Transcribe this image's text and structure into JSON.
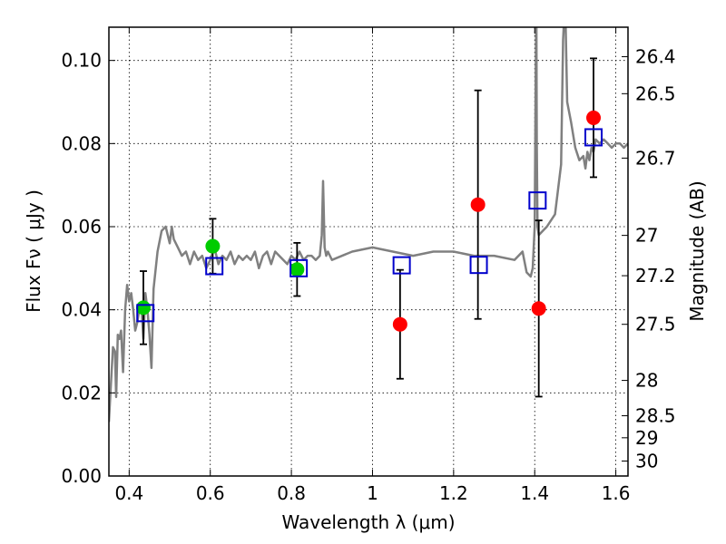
{
  "chart_data": {
    "type": "scatter",
    "title": "",
    "xlabel": "Wavelength  λ (μm)",
    "ylabel": "Flux  Fν  ( μJy )",
    "y2label": "Magnitude (AB)",
    "xlim": [
      0.35,
      1.63
    ],
    "ylim": [
      0.0,
      0.108
    ],
    "grid": true,
    "x_ticks": [
      0.4,
      0.6,
      0.8,
      1.0,
      1.2,
      1.4,
      1.6
    ],
    "x_tick_labels": [
      "0.4",
      "0.6",
      "0.8",
      "1",
      "1.2",
      "1.4",
      "1.6"
    ],
    "y_ticks": [
      0.0,
      0.02,
      0.04,
      0.06,
      0.08,
      0.1
    ],
    "y_tick_labels": [
      "0.00",
      "0.02",
      "0.04",
      "0.06",
      "0.08",
      "0.10"
    ],
    "y2_tick_labels": [
      "26.4",
      "26.5",
      "26.7",
      "27",
      "27.2",
      "27.5",
      "28",
      "28.5",
      "29",
      "30"
    ],
    "y2_tick_flux": [
      0.1009,
      0.092,
      0.0765,
      0.0579,
      0.0482,
      0.0365,
      0.023,
      0.0145,
      0.0092,
      0.0036
    ],
    "colors": {
      "model": "#808080",
      "green_points": "#00cc00",
      "red_points": "#ff0000",
      "open_squares": "#0000cc",
      "error_bars": "#000000"
    },
    "series": [
      {
        "type": "line",
        "x": [
          0.35,
          0.355,
          0.36,
          0.365,
          0.368,
          0.372,
          0.376,
          0.38,
          0.385,
          0.39,
          0.395,
          0.4,
          0.405,
          0.41,
          0.415,
          0.42,
          0.425,
          0.43,
          0.435,
          0.44,
          0.445,
          0.45,
          0.455,
          0.46,
          0.47,
          0.48,
          0.49,
          0.5,
          0.505,
          0.51,
          0.52,
          0.53,
          0.54,
          0.55,
          0.56,
          0.57,
          0.58,
          0.59,
          0.6,
          0.61,
          0.62,
          0.63,
          0.64,
          0.65,
          0.66,
          0.67,
          0.68,
          0.69,
          0.7,
          0.71,
          0.72,
          0.73,
          0.74,
          0.75,
          0.76,
          0.77,
          0.78,
          0.79,
          0.8,
          0.81,
          0.82,
          0.83,
          0.84,
          0.85,
          0.86,
          0.87,
          0.875,
          0.878,
          0.882,
          0.886,
          0.89,
          0.9,
          0.95,
          1.0,
          1.05,
          1.1,
          1.15,
          1.2,
          1.25,
          1.3,
          1.35,
          1.37,
          1.38,
          1.39,
          1.395,
          1.4,
          1.402,
          1.404,
          1.405,
          1.407,
          1.41,
          1.43,
          1.45,
          1.465,
          1.47,
          1.475,
          1.48,
          1.49,
          1.5,
          1.51,
          1.52,
          1.525,
          1.53,
          1.535,
          1.54,
          1.545,
          1.55,
          1.56,
          1.57,
          1.58,
          1.59,
          1.6,
          1.61,
          1.62,
          1.63
        ],
        "y": [
          0.013,
          0.022,
          0.031,
          0.03,
          0.019,
          0.034,
          0.033,
          0.035,
          0.025,
          0.04,
          0.046,
          0.042,
          0.044,
          0.04,
          0.035,
          0.037,
          0.04,
          0.041,
          0.033,
          0.044,
          0.04,
          0.034,
          0.026,
          0.045,
          0.054,
          0.059,
          0.06,
          0.056,
          0.06,
          0.057,
          0.055,
          0.053,
          0.054,
          0.051,
          0.054,
          0.052,
          0.053,
          0.05,
          0.052,
          0.055,
          0.051,
          0.053,
          0.052,
          0.054,
          0.051,
          0.053,
          0.052,
          0.053,
          0.052,
          0.054,
          0.05,
          0.053,
          0.054,
          0.051,
          0.054,
          0.053,
          0.052,
          0.051,
          0.053,
          0.052,
          0.054,
          0.052,
          0.053,
          0.053,
          0.052,
          0.053,
          0.058,
          0.071,
          0.055,
          0.053,
          0.054,
          0.052,
          0.054,
          0.055,
          0.054,
          0.053,
          0.054,
          0.054,
          0.053,
          0.053,
          0.052,
          0.054,
          0.049,
          0.048,
          0.05,
          0.06,
          0.09,
          0.115,
          0.08,
          0.06,
          0.058,
          0.06,
          0.063,
          0.075,
          0.105,
          0.115,
          0.09,
          0.085,
          0.079,
          0.076,
          0.077,
          0.074,
          0.078,
          0.076,
          0.079,
          0.078,
          0.081,
          0.08,
          0.081,
          0.08,
          0.079,
          0.08,
          0.08,
          0.079,
          0.08
        ]
      },
      {
        "type": "points",
        "marker": "filled-circle",
        "color": "green",
        "x": [
          0.435,
          0.606,
          0.814
        ],
        "y": [
          0.0405,
          0.0553,
          0.0497
        ],
        "err": [
          0.0088,
          0.0066,
          0.0064
        ]
      },
      {
        "type": "points",
        "marker": "filled-circle",
        "color": "red",
        "x": [
          1.068,
          1.26,
          1.41,
          1.545
        ],
        "y": [
          0.0365,
          0.0653,
          0.0403,
          0.0862
        ],
        "err": [
          0.0131,
          0.0275,
          0.0212,
          0.0143
        ]
      },
      {
        "type": "points",
        "marker": "open-square",
        "color": "blue",
        "x": [
          0.44,
          0.61,
          0.818,
          1.072,
          1.262,
          1.407,
          1.545
        ],
        "y": [
          0.0392,
          0.0505,
          0.05,
          0.0507,
          0.0508,
          0.0663,
          0.0815
        ]
      }
    ]
  }
}
